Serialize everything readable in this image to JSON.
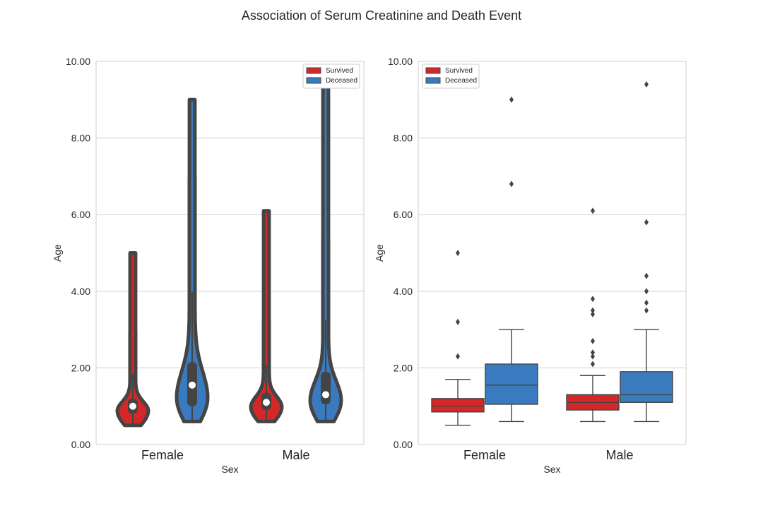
{
  "figure": {
    "title": "Association of Serum Creatinine and Death Event"
  },
  "chart_data": [
    {
      "type": "violin",
      "xlabel": "Sex",
      "ylabel": "Age",
      "ylim": [
        0,
        10
      ],
      "yticks": [
        "0.00",
        "2.00",
        "4.00",
        "6.00",
        "8.00",
        "10.00"
      ],
      "categories": [
        "Female",
        "Male"
      ],
      "grid": true,
      "legend": {
        "position": "top-right",
        "entries": [
          "Survived",
          "Deceased"
        ]
      },
      "series": [
        {
          "name": "Survived",
          "color": "#d62728",
          "groups": [
            {
              "category": "Female",
              "min": 0.5,
              "q1": 0.8,
              "median": 1.0,
              "q3": 1.2,
              "max": 5.0
            },
            {
              "category": "Male",
              "min": 0.6,
              "q1": 0.9,
              "median": 1.1,
              "q3": 1.35,
              "max": 6.1
            }
          ]
        },
        {
          "name": "Deceased",
          "color": "#3a7bbf",
          "groups": [
            {
              "category": "Female",
              "min": 0.6,
              "q1": 1.0,
              "median": 1.55,
              "q3": 2.15,
              "max": 9.0
            },
            {
              "category": "Male",
              "min": 0.6,
              "q1": 1.05,
              "median": 1.3,
              "q3": 1.9,
              "max": 9.4
            }
          ]
        }
      ]
    },
    {
      "type": "box",
      "xlabel": "Sex",
      "ylabel": "Age",
      "ylim": [
        0,
        10
      ],
      "yticks": [
        "0.00",
        "2.00",
        "4.00",
        "6.00",
        "8.00",
        "10.00"
      ],
      "categories": [
        "Female",
        "Male"
      ],
      "grid": true,
      "legend": {
        "position": "top-left",
        "entries": [
          "Survived",
          "Deceased"
        ]
      },
      "series": [
        {
          "name": "Survived",
          "color": "#d62728",
          "groups": [
            {
              "category": "Female",
              "whisker_low": 0.5,
              "q1": 0.85,
              "median": 1.0,
              "q3": 1.2,
              "whisker_high": 1.7,
              "outliers": [
                2.3,
                3.2,
                5.0
              ]
            },
            {
              "category": "Male",
              "whisker_low": 0.6,
              "q1": 0.9,
              "median": 1.1,
              "q3": 1.3,
              "whisker_high": 1.8,
              "outliers": [
                2.1,
                2.3,
                2.4,
                2.7,
                3.4,
                3.5,
                3.8,
                6.1
              ]
            }
          ]
        },
        {
          "name": "Deceased",
          "color": "#3a7bbf",
          "groups": [
            {
              "category": "Female",
              "whisker_low": 0.6,
              "q1": 1.05,
              "median": 1.55,
              "q3": 2.1,
              "whisker_high": 3.0,
              "outliers": [
                6.8,
                9.0
              ]
            },
            {
              "category": "Male",
              "whisker_low": 0.6,
              "q1": 1.1,
              "median": 1.3,
              "q3": 1.9,
              "whisker_high": 3.0,
              "outliers": [
                3.5,
                3.7,
                4.0,
                4.4,
                5.8,
                9.4
              ]
            }
          ]
        }
      ]
    }
  ]
}
